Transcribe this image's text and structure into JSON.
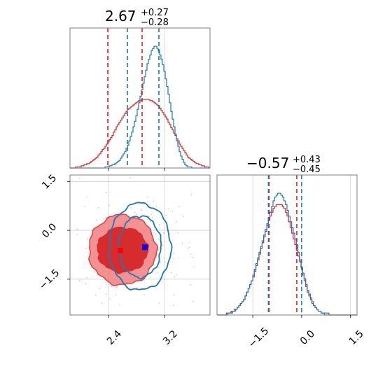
{
  "chart_data": {
    "type": "corner",
    "colors": {
      "series_a": "#d62728",
      "series_b": "#1f77b4",
      "fill_inner": "#d62728",
      "fill_outer": "#f08080",
      "marker": "#0000ff"
    },
    "titles": [
      {
        "value": "2.67",
        "upper": "+0.27",
        "lower": "−0.28"
      },
      {
        "value": "−0.57",
        "upper": "+0.43",
        "lower": "−0.45"
      }
    ],
    "axes": {
      "param1": {
        "range": [
          1.85,
          3.85
        ],
        "ticks": [
          2.4,
          3.2
        ],
        "tick_labels": [
          "2.4",
          "3.2"
        ]
      },
      "param2": {
        "range": [
          -2.6,
          1.7
        ],
        "ticks": [
          -1.5,
          0.0,
          1.5
        ],
        "tick_labels": [
          "−1.5",
          "0.0",
          "1.5"
        ]
      }
    },
    "hist1": {
      "bins": [
        1.85,
        3.85
      ],
      "series_a": [
        0,
        0,
        0,
        0,
        1,
        1,
        1,
        1,
        2,
        2,
        3,
        3,
        4,
        4,
        5,
        6,
        7,
        8,
        9,
        10,
        12,
        13,
        15,
        17,
        18,
        20,
        22,
        24,
        26,
        28,
        30,
        33,
        35,
        38,
        40,
        42,
        44,
        46,
        48,
        50,
        52,
        54,
        55,
        56,
        57,
        58,
        59,
        60,
        61,
        62,
        62,
        63,
        63,
        63,
        63,
        63,
        63,
        62,
        62,
        61,
        60,
        59,
        58,
        57,
        55,
        53,
        51,
        49,
        47,
        45,
        42,
        40,
        37,
        35,
        32,
        30,
        27,
        25,
        22,
        20,
        18,
        16,
        14,
        12,
        10,
        9,
        8,
        7,
        6,
        5,
        4,
        4,
        3,
        3,
        2,
        2,
        1,
        1,
        1,
        0
      ],
      "series_b": [
        0,
        0,
        0,
        0,
        0,
        0,
        0,
        0,
        0,
        0,
        0,
        0,
        0,
        0,
        0,
        0,
        0,
        0,
        0,
        0,
        0,
        0,
        0,
        0,
        0,
        1,
        1,
        1,
        2,
        2,
        3,
        3,
        4,
        5,
        6,
        7,
        9,
        11,
        13,
        15,
        18,
        21,
        25,
        29,
        33,
        38,
        43,
        48,
        54,
        60,
        66,
        72,
        78,
        84,
        90,
        96,
        100,
        104,
        108,
        110,
        112,
        112,
        110,
        108,
        104,
        100,
        95,
        89,
        82,
        75,
        68,
        60,
        52,
        45,
        38,
        31,
        25,
        20,
        15,
        11,
        8,
        5,
        3,
        2,
        1,
        1,
        1,
        0,
        0,
        0,
        0,
        0,
        0,
        0,
        0,
        0,
        0,
        0,
        0,
        0
      ],
      "quantiles_a": [
        2.39,
        2.88
      ],
      "quantiles_b": [
        2.67,
        3.12
      ]
    },
    "hist2": {
      "bins": [
        -2.6,
        1.7
      ],
      "series_a": [
        0,
        0,
        0,
        0,
        0,
        0,
        1,
        1,
        1,
        2,
        2,
        3,
        3,
        4,
        5,
        6,
        7,
        8,
        10,
        12,
        14,
        16,
        18,
        20,
        23,
        26,
        29,
        32,
        35,
        38,
        41,
        44,
        47,
        50,
        52,
        54,
        56,
        57,
        58,
        58,
        58,
        58,
        57,
        56,
        54,
        52,
        49,
        46,
        43,
        40,
        37,
        34,
        31,
        28,
        25,
        22,
        19,
        16,
        13,
        11,
        9,
        7,
        5,
        4,
        3,
        2,
        2,
        1,
        1,
        0,
        0,
        0,
        0,
        0,
        0,
        0,
        0,
        0,
        0,
        0,
        0,
        0,
        0,
        0,
        0,
        0,
        0,
        0,
        0,
        0
      ],
      "series_b": [
        0,
        0,
        0,
        0,
        0,
        0,
        0,
        1,
        1,
        1,
        2,
        2,
        3,
        4,
        5,
        6,
        7,
        8,
        10,
        12,
        14,
        16,
        18,
        21,
        24,
        27,
        30,
        33,
        36,
        39,
        42,
        45,
        48,
        51,
        54,
        57,
        60,
        62,
        63,
        64,
        64,
        63,
        62,
        60,
        58,
        55,
        52,
        49,
        46,
        43,
        40,
        37,
        33,
        29,
        25,
        21,
        18,
        15,
        12,
        10,
        8,
        6,
        5,
        4,
        3,
        2,
        2,
        1,
        1,
        1,
        1,
        1,
        0,
        0,
        0,
        0,
        0,
        0,
        0,
        0,
        0,
        0,
        0,
        0,
        0,
        0,
        0,
        0,
        0,
        0
      ],
      "quantiles_a": [
        -1.0,
        -0.15
      ],
      "quantiles_b": [
        -1.02,
        0.0
      ]
    },
    "joint": {
      "series_a_center": [
        2.6,
        -0.6
      ],
      "series_b_center": [
        2.85,
        -0.5
      ],
      "marker_a": [
        2.57,
        -0.62
      ],
      "marker_b": [
        2.92,
        -0.52
      ]
    }
  }
}
